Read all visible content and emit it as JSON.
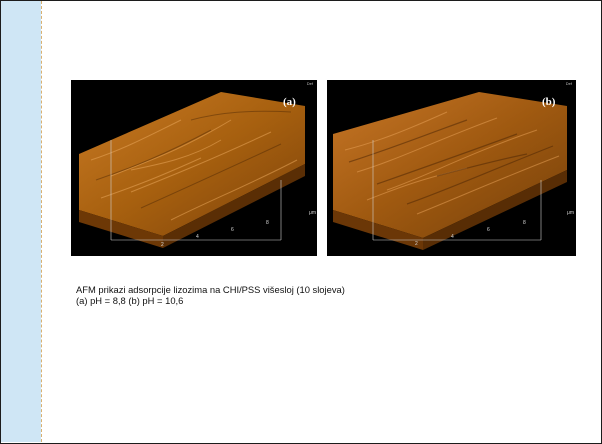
{
  "slide": {
    "colors": {
      "sidebar": "#cfe6f5",
      "background": "#ffffff",
      "surface": "#a45a0c"
    },
    "images": [
      {
        "label": "(a)",
        "axis_unit": "μm",
        "ticks": [
          "2",
          "4",
          "6",
          "8"
        ],
        "corner_text": "Def"
      },
      {
        "label": "(b)",
        "axis_unit": "μm",
        "ticks": [
          "2",
          "4",
          "6",
          "8"
        ],
        "corner_text": "Def"
      }
    ],
    "caption": {
      "line1": "AFM prikazi adsorpcije lizozima na CHI/PSS višesloj (10 slojeva)",
      "line2": "(a) pH = 8,8 (b) pH = 10,6"
    }
  }
}
